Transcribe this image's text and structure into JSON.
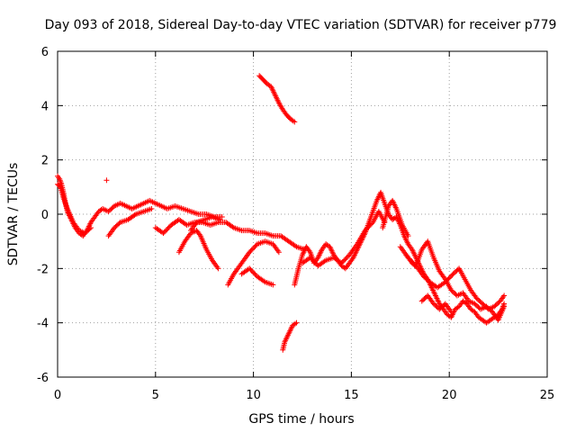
{
  "chart_data": {
    "type": "scatter",
    "title": "Day 093 of 2018, Sidereal Day-to-day VTEC variation (SDTVAR) for receiver p779",
    "xlabel": "GPS time / hours",
    "ylabel": "SDTVAR / TECUs",
    "xlim": [
      0,
      25
    ],
    "ylim": [
      -6,
      6
    ],
    "xticks": [
      "0",
      "5",
      "10",
      "15",
      "20",
      "25"
    ],
    "yticks": [
      "6",
      "4",
      "2",
      "0",
      "-2",
      "-4",
      "-6"
    ],
    "grid": true,
    "marker": "+",
    "color": "#ff0000",
    "series": [
      {
        "name": "SDTVAR",
        "segments": [
          [
            [
              0.0,
              1.4
            ],
            [
              0.1,
              1.3
            ],
            [
              0.2,
              1.1
            ],
            [
              0.3,
              0.8
            ],
            [
              0.4,
              0.4
            ],
            [
              0.5,
              0.1
            ],
            [
              0.7,
              -0.2
            ],
            [
              0.9,
              -0.5
            ],
            [
              1.1,
              -0.7
            ],
            [
              1.3,
              -0.8
            ],
            [
              1.5,
              -0.6
            ],
            [
              1.7,
              -0.3
            ],
            [
              1.9,
              -0.1
            ],
            [
              2.1,
              0.1
            ],
            [
              2.3,
              0.2
            ],
            [
              2.6,
              0.1
            ],
            [
              2.9,
              0.3
            ],
            [
              3.2,
              0.4
            ],
            [
              3.5,
              0.3
            ],
            [
              3.8,
              0.2
            ],
            [
              4.1,
              0.3
            ],
            [
              4.4,
              0.4
            ],
            [
              4.7,
              0.5
            ],
            [
              5.0,
              0.4
            ],
            [
              5.3,
              0.3
            ],
            [
              5.6,
              0.2
            ],
            [
              6.0,
              0.3
            ],
            [
              6.4,
              0.2
            ],
            [
              6.8,
              0.1
            ],
            [
              7.2,
              0.0
            ],
            [
              7.6,
              0.0
            ],
            [
              8.0,
              -0.1
            ],
            [
              8.4,
              -0.1
            ]
          ],
          [
            [
              0.0,
              1.1
            ],
            [
              0.15,
              1.0
            ],
            [
              0.3,
              0.6
            ],
            [
              0.5,
              0.2
            ],
            [
              0.8,
              -0.3
            ],
            [
              1.1,
              -0.6
            ],
            [
              1.4,
              -0.7
            ],
            [
              1.7,
              -0.5
            ]
          ],
          [
            [
              2.5,
              1.25
            ]
          ],
          [
            [
              2.6,
              -0.8
            ],
            [
              2.9,
              -0.5
            ],
            [
              3.2,
              -0.3
            ],
            [
              3.6,
              -0.2
            ],
            [
              4.0,
              0.0
            ],
            [
              4.4,
              0.1
            ],
            [
              4.8,
              0.2
            ]
          ],
          [
            [
              5.0,
              -0.5
            ],
            [
              5.4,
              -0.7
            ],
            [
              5.8,
              -0.4
            ],
            [
              6.2,
              -0.2
            ],
            [
              6.6,
              -0.4
            ],
            [
              7.0,
              -0.3
            ],
            [
              7.4,
              -0.3
            ],
            [
              7.8,
              -0.4
            ],
            [
              8.2,
              -0.3
            ],
            [
              8.6,
              -0.3
            ],
            [
              9.0,
              -0.5
            ],
            [
              9.4,
              -0.6
            ],
            [
              9.8,
              -0.6
            ],
            [
              10.2,
              -0.7
            ],
            [
              10.6,
              -0.7
            ],
            [
              11.0,
              -0.8
            ],
            [
              11.4,
              -0.8
            ],
            [
              11.8,
              -1.0
            ],
            [
              12.2,
              -1.2
            ],
            [
              12.6,
              -1.3
            ]
          ],
          [
            [
              6.2,
              -1.4
            ],
            [
              6.5,
              -1.0
            ],
            [
              6.8,
              -0.7
            ],
            [
              7.1,
              -0.6
            ],
            [
              7.3,
              -0.8
            ],
            [
              7.6,
              -1.3
            ],
            [
              7.9,
              -1.7
            ],
            [
              8.2,
              -2.0
            ]
          ],
          [
            [
              6.8,
              -0.6
            ],
            [
              7.1,
              -0.3
            ],
            [
              7.5,
              -0.2
            ],
            [
              7.9,
              -0.1
            ],
            [
              8.3,
              -0.2
            ]
          ],
          [
            [
              8.7,
              -2.6
            ],
            [
              9.0,
              -2.2
            ],
            [
              9.4,
              -1.8
            ],
            [
              9.8,
              -1.4
            ],
            [
              10.2,
              -1.1
            ],
            [
              10.6,
              -1.0
            ],
            [
              11.0,
              -1.1
            ],
            [
              11.3,
              -1.4
            ]
          ],
          [
            [
              9.4,
              -2.2
            ],
            [
              9.8,
              -2.0
            ],
            [
              10.2,
              -2.3
            ],
            [
              10.6,
              -2.5
            ],
            [
              11.0,
              -2.6
            ]
          ],
          [
            [
              10.3,
              5.1
            ],
            [
              10.5,
              4.95
            ],
            [
              10.7,
              4.8
            ],
            [
              10.9,
              4.7
            ],
            [
              11.1,
              4.4
            ],
            [
              11.3,
              4.1
            ],
            [
              11.5,
              3.85
            ],
            [
              11.7,
              3.65
            ],
            [
              11.9,
              3.5
            ],
            [
              12.1,
              3.4
            ]
          ],
          [
            [
              11.5,
              -5.0
            ],
            [
              11.6,
              -4.7
            ],
            [
              11.8,
              -4.4
            ],
            [
              12.0,
              -4.1
            ],
            [
              12.2,
              -4.0
            ]
          ],
          [
            [
              12.1,
              -2.6
            ],
            [
              12.3,
              -2.0
            ],
            [
              12.5,
              -1.5
            ],
            [
              12.7,
              -1.2
            ],
            [
              12.9,
              -1.4
            ],
            [
              13.1,
              -1.8
            ],
            [
              13.3,
              -1.6
            ],
            [
              13.5,
              -1.3
            ],
            [
              13.7,
              -1.1
            ],
            [
              13.9,
              -1.2
            ],
            [
              14.1,
              -1.5
            ],
            [
              14.3,
              -1.7
            ],
            [
              14.5,
              -1.9
            ],
            [
              14.7,
              -2.0
            ],
            [
              14.9,
              -1.8
            ],
            [
              15.1,
              -1.6
            ],
            [
              15.3,
              -1.3
            ],
            [
              15.5,
              -1.0
            ],
            [
              15.7,
              -0.7
            ],
            [
              15.9,
              -0.3
            ],
            [
              16.1,
              0.1
            ],
            [
              16.3,
              0.5
            ],
            [
              16.5,
              0.8
            ],
            [
              16.7,
              0.4
            ],
            [
              16.9,
              0.0
            ],
            [
              17.1,
              -0.2
            ],
            [
              17.3,
              -0.1
            ],
            [
              17.5,
              -0.4
            ],
            [
              17.7,
              -0.8
            ],
            [
              17.9,
              -1.1
            ],
            [
              18.1,
              -1.3
            ],
            [
              18.3,
              -1.6
            ],
            [
              18.5,
              -1.9
            ],
            [
              18.7,
              -2.2
            ],
            [
              18.9,
              -2.4
            ],
            [
              19.1,
              -2.7
            ],
            [
              19.3,
              -3.0
            ],
            [
              19.5,
              -3.3
            ],
            [
              19.7,
              -3.5
            ],
            [
              19.9,
              -3.7
            ],
            [
              20.1,
              -3.8
            ],
            [
              20.3,
              -3.5
            ],
            [
              20.5,
              -3.4
            ],
            [
              20.7,
              -3.2
            ],
            [
              20.9,
              -3.3
            ],
            [
              21.1,
              -3.5
            ],
            [
              21.3,
              -3.6
            ],
            [
              21.5,
              -3.8
            ],
            [
              21.7,
              -3.9
            ],
            [
              21.9,
              -4.0
            ],
            [
              22.1,
              -3.9
            ],
            [
              22.3,
              -3.8
            ],
            [
              22.5,
              -3.7
            ],
            [
              22.7,
              -3.5
            ],
            [
              22.8,
              -3.3
            ]
          ],
          [
            [
              12.5,
              -1.8
            ],
            [
              12.9,
              -1.6
            ],
            [
              13.3,
              -1.9
            ],
            [
              13.7,
              -1.7
            ],
            [
              14.1,
              -1.6
            ],
            [
              14.5,
              -1.8
            ],
            [
              14.9,
              -1.5
            ],
            [
              15.3,
              -1.1
            ],
            [
              15.7,
              -0.6
            ],
            [
              16.1,
              -0.3
            ],
            [
              16.4,
              0.1
            ],
            [
              16.7,
              -0.3
            ]
          ],
          [
            [
              16.6,
              -0.5
            ],
            [
              16.9,
              0.3
            ],
            [
              17.1,
              0.5
            ],
            [
              17.3,
              0.2
            ],
            [
              17.6,
              -0.4
            ],
            [
              17.9,
              -0.8
            ]
          ],
          [
            [
              17.8,
              -1.5
            ],
            [
              18.1,
              -1.8
            ],
            [
              18.4,
              -2.0
            ],
            [
              18.7,
              -2.3
            ],
            [
              19.0,
              -2.5
            ],
            [
              19.4,
              -2.7
            ],
            [
              19.8,
              -2.5
            ],
            [
              20.2,
              -2.2
            ],
            [
              20.5,
              -2.0
            ],
            [
              20.8,
              -2.4
            ],
            [
              21.1,
              -2.8
            ],
            [
              21.4,
              -3.1
            ],
            [
              21.7,
              -3.3
            ],
            [
              22.0,
              -3.5
            ],
            [
              22.3,
              -3.4
            ],
            [
              22.6,
              -3.2
            ],
            [
              22.8,
              -3.0
            ]
          ],
          [
            [
              17.5,
              -1.2
            ],
            [
              17.9,
              -1.6
            ],
            [
              18.3,
              -1.9
            ],
            [
              18.6,
              -1.3
            ],
            [
              18.9,
              -1.0
            ],
            [
              19.2,
              -1.6
            ],
            [
              19.5,
              -2.1
            ],
            [
              19.8,
              -2.4
            ],
            [
              20.1,
              -2.8
            ],
            [
              20.4,
              -3.0
            ],
            [
              20.7,
              -2.9
            ],
            [
              21.0,
              -3.2
            ],
            [
              21.3,
              -3.3
            ],
            [
              21.6,
              -3.5
            ],
            [
              21.9,
              -3.4
            ],
            [
              22.2,
              -3.6
            ],
            [
              22.5,
              -3.9
            ],
            [
              22.8,
              -3.4
            ]
          ],
          [
            [
              18.6,
              -3.2
            ],
            [
              18.9,
              -3.0
            ],
            [
              19.2,
              -3.3
            ],
            [
              19.5,
              -3.5
            ],
            [
              19.8,
              -3.3
            ],
            [
              20.1,
              -3.6
            ]
          ]
        ]
      }
    ]
  }
}
